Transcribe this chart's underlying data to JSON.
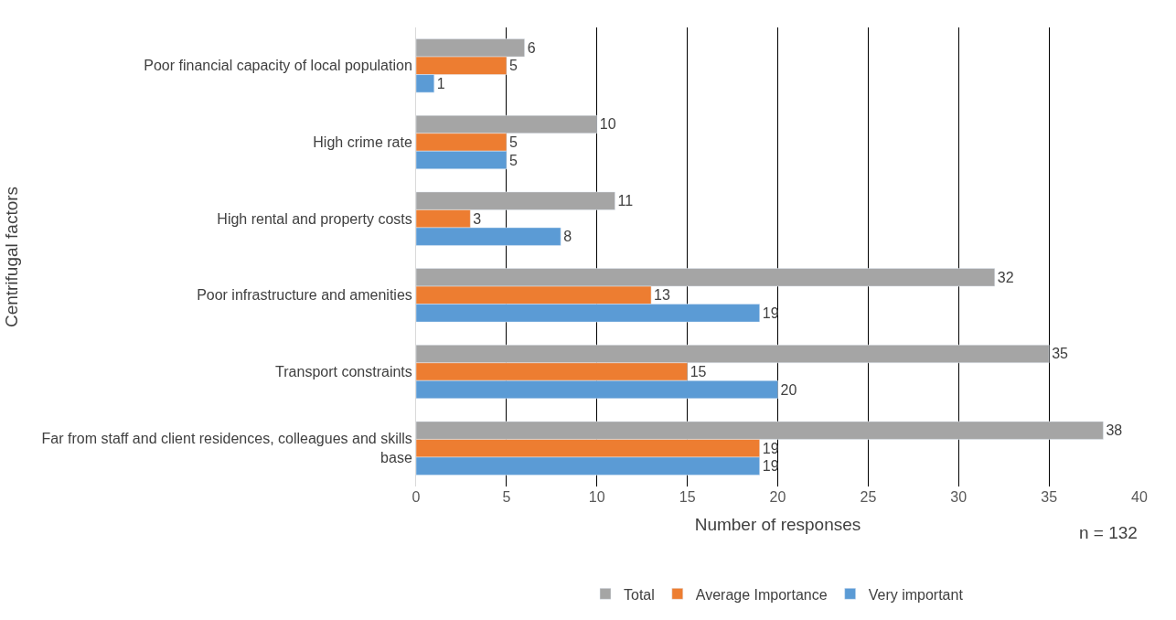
{
  "chart_data": {
    "type": "bar",
    "orientation": "horizontal",
    "categories": [
      "Poor financial capacity of local population",
      "High crime rate",
      "High rental and property costs",
      "Poor infrastructure and amenities",
      "Transport constraints",
      "Far from staff and client residences, colleagues and skills base"
    ],
    "series": [
      {
        "name": "Total",
        "color": "#a5a5a5",
        "values": [
          6,
          10,
          11,
          32,
          35,
          38
        ]
      },
      {
        "name": "Average Importance",
        "color": "#ed7d31",
        "values": [
          5,
          5,
          3,
          13,
          15,
          19
        ]
      },
      {
        "name": "Very important",
        "color": "#5b9bd5",
        "values": [
          1,
          5,
          8,
          19,
          20,
          19
        ]
      }
    ],
    "xlim": [
      0,
      40
    ],
    "xticks": [
      0,
      5,
      10,
      15,
      20,
      25,
      30,
      35,
      40
    ],
    "xlabel": "Number of responses",
    "ylabel": "Centrifugal factors",
    "annotations": [
      "n = 132"
    ],
    "data_labels": true,
    "grid": "x",
    "legend": "bottom"
  }
}
